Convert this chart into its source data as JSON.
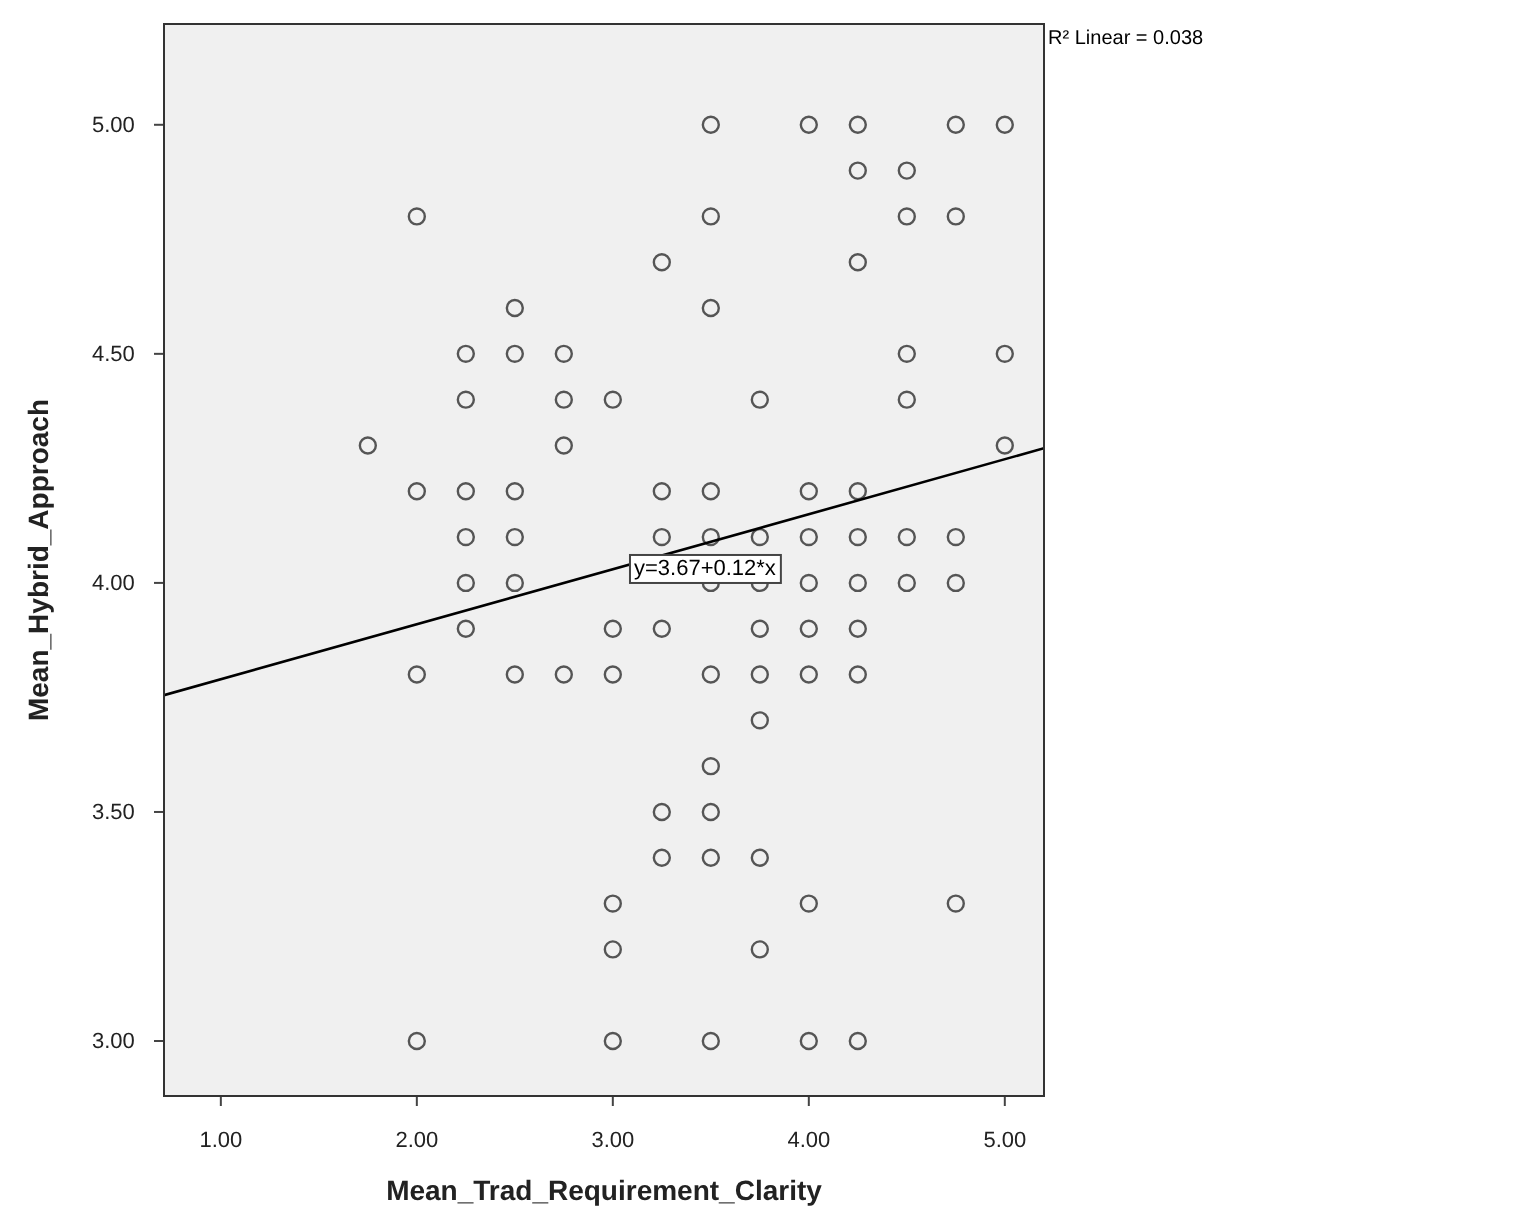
{
  "chart_data": {
    "type": "scatter",
    "xlabel": "Mean_Trad_Requirement_Clarity",
    "ylabel": "Mean_Hybrid_Approach",
    "xlim": [
      0.71,
      5.2
    ],
    "ylim": [
      2.88,
      5.22
    ],
    "xticks": [
      {
        "value": 1,
        "label": "1.00"
      },
      {
        "value": 2,
        "label": "2.00"
      },
      {
        "value": 3,
        "label": "3.00"
      },
      {
        "value": 4,
        "label": "4.00"
      },
      {
        "value": 5,
        "label": "5.00"
      }
    ],
    "yticks": [
      {
        "value": 3,
        "label": "3.00"
      },
      {
        "value": 3.5,
        "label": "3.50"
      },
      {
        "value": 4,
        "label": "4.00"
      },
      {
        "value": 4.5,
        "label": "4.50"
      },
      {
        "value": 5,
        "label": "5.00"
      }
    ],
    "marker": "circle",
    "grid": false,
    "annotations": [
      {
        "text": "y=3.67+0.12*x",
        "x": 3.47,
        "y": 4.03
      },
      "R² Linear = 0.038"
    ],
    "series": [
      {
        "color": "#555555",
        "x": [
          1.75,
          2,
          2,
          2,
          2,
          2.25,
          2.25,
          2.25,
          2.25,
          2.25,
          2.25,
          2.5,
          2.5,
          2.5,
          2.5,
          2.5,
          2.5,
          2.75,
          2.75,
          2.75,
          2.75,
          3,
          3,
          3,
          3,
          3,
          3,
          3.25,
          3.25,
          3.25,
          3.25,
          3.25,
          3.25,
          3.5,
          3.5,
          3.5,
          3.5,
          3.5,
          3.5,
          3.5,
          3.5,
          3.5,
          3.5,
          3.5,
          3.75,
          3.75,
          3.75,
          3.75,
          3.75,
          3.75,
          3.75,
          3.75,
          4,
          4,
          4,
          4,
          4,
          4,
          4,
          4,
          4.25,
          4.25,
          4.25,
          4.25,
          4.25,
          4.25,
          4.25,
          4.25,
          4.25,
          4.5,
          4.5,
          4.5,
          4.5,
          4.5,
          4.5,
          4.75,
          4.75,
          4.75,
          4.75,
          4.75,
          5,
          5,
          5
        ],
        "values": [
          4.3,
          4.8,
          4.2,
          3.8,
          3.0,
          4.5,
          4.4,
          4.2,
          4.1,
          4.0,
          3.9,
          4.6,
          4.5,
          4.2,
          4.1,
          4.0,
          3.8,
          4.5,
          4.4,
          4.3,
          3.8,
          4.4,
          3.9,
          3.8,
          3.3,
          3.2,
          3.0,
          4.7,
          4.2,
          4.1,
          3.9,
          3.5,
          3.4,
          5.0,
          4.8,
          4.6,
          4.2,
          4.1,
          4.0,
          3.8,
          3.6,
          3.5,
          3.4,
          3.0,
          4.4,
          4.1,
          4.0,
          3.9,
          3.8,
          3.7,
          3.4,
          3.2,
          5.0,
          4.2,
          4.1,
          4.0,
          3.9,
          3.8,
          3.3,
          3.0,
          5.0,
          4.9,
          4.7,
          4.2,
          4.1,
          4.0,
          3.9,
          3.8,
          3.0,
          4.9,
          4.8,
          4.5,
          4.4,
          4.1,
          4.0,
          5.0,
          4.8,
          4.1,
          4.0,
          3.3,
          5.0,
          4.5,
          4.3
        ]
      },
      {
        "type": "line",
        "marker": "none",
        "color": "#000000",
        "x": [
          0.71,
          5.2
        ],
        "values": [
          3.755,
          4.294
        ]
      }
    ]
  }
}
